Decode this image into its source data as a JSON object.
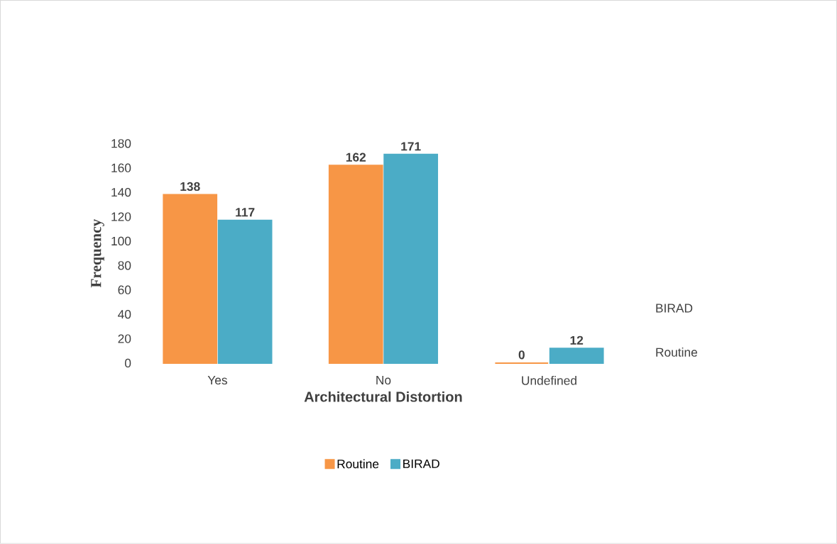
{
  "chart_data": {
    "type": "bar",
    "xlabel": "Architectural Distortion",
    "ylabel": "Frequency",
    "categories": [
      "Yes",
      "No",
      "Undefined"
    ],
    "series": [
      {
        "name": "Routine",
        "color": "#f79646",
        "values": [
          138,
          162,
          0
        ]
      },
      {
        "name": "BIRAD",
        "color": "#4bacc6",
        "values": [
          117,
          171,
          12
        ]
      }
    ],
    "ylim": [
      0,
      180
    ],
    "yticks": [
      0,
      20,
      40,
      60,
      80,
      100,
      120,
      140,
      160,
      180
    ],
    "data_labels": true,
    "legend": "bottom"
  }
}
